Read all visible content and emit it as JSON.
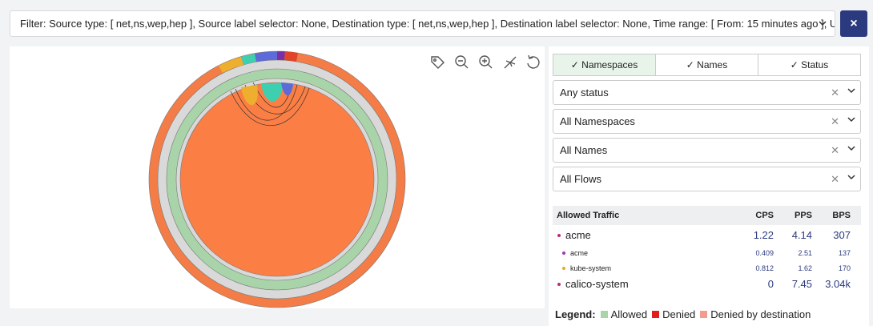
{
  "filter_bar": {
    "text": "Filter: Source type: [ net,ns,wep,hep ], Source label selector: None, Destination type: [ net,ns,wep,hep ], Destination label selector: None, Time range: [ From: 15 minutes ago ], U…",
    "close": "×"
  },
  "tabs": [
    "✓ Namespaces",
    "✓ Names",
    "✓ Status"
  ],
  "selects": [
    "Any status",
    "All Namespaces",
    "All Names",
    "All Flows"
  ],
  "table": {
    "headers": [
      "Allowed Traffic",
      "CPS",
      "PPS",
      "BPS"
    ],
    "rows": [
      [
        "acme",
        1.22,
        4.14,
        307
      ],
      [
        "acme",
        0.409,
        2.51,
        137
      ],
      [
        "kube-system",
        0.812,
        1.62,
        170
      ],
      [
        "calico-system",
        0,
        7.45,
        "3.04k"
      ]
    ]
  },
  "legend": {
    "title": "Legend:",
    "items": [
      "Allowed",
      "Denied",
      "Denied by destination"
    ]
  }
}
